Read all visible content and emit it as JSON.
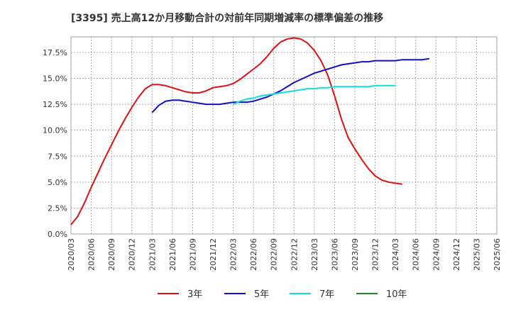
{
  "chart_data": {
    "type": "line",
    "title": "[3395]  売上高12か月移動合計の対前年同期増減率の標準偏差の推移",
    "xlabel": "",
    "ylabel": "",
    "ylim": [
      0,
      0.19
    ],
    "y_ticks": [
      {
        "value": 0.0,
        "label": "0.0%"
      },
      {
        "value": 0.025,
        "label": "2.5%"
      },
      {
        "value": 0.05,
        "label": "5.0%"
      },
      {
        "value": 0.075,
        "label": "7.5%"
      },
      {
        "value": 0.1,
        "label": "10.0%"
      },
      {
        "value": 0.125,
        "label": "12.5%"
      },
      {
        "value": 0.15,
        "label": "15.0%"
      },
      {
        "value": 0.175,
        "label": "17.5%"
      }
    ],
    "x_ticks": [
      "2020/03",
      "2020/06",
      "2020/09",
      "2020/12",
      "2021/03",
      "2021/06",
      "2021/09",
      "2021/12",
      "2022/03",
      "2022/06",
      "2022/09",
      "2022/12",
      "2023/03",
      "2023/06",
      "2023/09",
      "2023/12",
      "2024/03",
      "2024/06",
      "2024/09",
      "2024/12",
      "2025/03",
      "2025/06"
    ],
    "grid": true,
    "legend_position": "bottom",
    "series": [
      {
        "name": "3年",
        "color": "#dd1111",
        "points": [
          [
            "2020/03",
            0.009
          ],
          [
            "2020/04",
            0.017
          ],
          [
            "2020/05",
            0.03
          ],
          [
            "2020/06",
            0.045
          ],
          [
            "2020/07",
            0.059
          ],
          [
            "2020/08",
            0.073
          ],
          [
            "2020/09",
            0.086
          ],
          [
            "2020/10",
            0.099
          ],
          [
            "2020/11",
            0.111
          ],
          [
            "2020/12",
            0.122
          ],
          [
            "2021/01",
            0.132
          ],
          [
            "2021/02",
            0.14
          ],
          [
            "2021/03",
            0.144
          ],
          [
            "2021/04",
            0.144
          ],
          [
            "2021/05",
            0.143
          ],
          [
            "2021/06",
            0.141
          ],
          [
            "2021/07",
            0.139
          ],
          [
            "2021/08",
            0.137
          ],
          [
            "2021/09",
            0.136
          ],
          [
            "2021/10",
            0.136
          ],
          [
            "2021/11",
            0.138
          ],
          [
            "2021/12",
            0.141
          ],
          [
            "2022/01",
            0.142
          ],
          [
            "2022/02",
            0.143
          ],
          [
            "2022/03",
            0.145
          ],
          [
            "2022/04",
            0.149
          ],
          [
            "2022/05",
            0.154
          ],
          [
            "2022/06",
            0.159
          ],
          [
            "2022/07",
            0.164
          ],
          [
            "2022/08",
            0.171
          ],
          [
            "2022/09",
            0.179
          ],
          [
            "2022/10",
            0.185
          ],
          [
            "2022/11",
            0.188
          ],
          [
            "2022/12",
            0.189
          ],
          [
            "2023/01",
            0.188
          ],
          [
            "2023/02",
            0.184
          ],
          [
            "2023/03",
            0.177
          ],
          [
            "2023/04",
            0.167
          ],
          [
            "2023/05",
            0.153
          ],
          [
            "2023/06",
            0.133
          ],
          [
            "2023/07",
            0.111
          ],
          [
            "2023/08",
            0.093
          ],
          [
            "2023/09",
            0.082
          ],
          [
            "2023/10",
            0.072
          ],
          [
            "2023/11",
            0.063
          ],
          [
            "2023/12",
            0.056
          ],
          [
            "2024/01",
            0.052
          ],
          [
            "2024/02",
            0.05
          ],
          [
            "2024/03",
            0.049
          ],
          [
            "2024/04",
            0.048
          ]
        ]
      },
      {
        "name": "5年",
        "color": "#1010cc",
        "points": [
          [
            "2021/03",
            0.117
          ],
          [
            "2021/04",
            0.124
          ],
          [
            "2021/05",
            0.128
          ],
          [
            "2021/06",
            0.129
          ],
          [
            "2021/07",
            0.129
          ],
          [
            "2021/08",
            0.128
          ],
          [
            "2021/09",
            0.127
          ],
          [
            "2021/10",
            0.126
          ],
          [
            "2021/11",
            0.125
          ],
          [
            "2021/12",
            0.125
          ],
          [
            "2022/01",
            0.125
          ],
          [
            "2022/02",
            0.126
          ],
          [
            "2022/03",
            0.127
          ],
          [
            "2022/04",
            0.127
          ],
          [
            "2022/05",
            0.127
          ],
          [
            "2022/06",
            0.128
          ],
          [
            "2022/07",
            0.13
          ],
          [
            "2022/08",
            0.132
          ],
          [
            "2022/09",
            0.135
          ],
          [
            "2022/10",
            0.138
          ],
          [
            "2022/11",
            0.142
          ],
          [
            "2022/12",
            0.146
          ],
          [
            "2023/01",
            0.149
          ],
          [
            "2023/02",
            0.152
          ],
          [
            "2023/03",
            0.155
          ],
          [
            "2023/04",
            0.157
          ],
          [
            "2023/05",
            0.159
          ],
          [
            "2023/06",
            0.161
          ],
          [
            "2023/07",
            0.163
          ],
          [
            "2023/08",
            0.164
          ],
          [
            "2023/09",
            0.165
          ],
          [
            "2023/10",
            0.166
          ],
          [
            "2023/11",
            0.166
          ],
          [
            "2023/12",
            0.167
          ],
          [
            "2024/01",
            0.167
          ],
          [
            "2024/02",
            0.167
          ],
          [
            "2024/03",
            0.167
          ],
          [
            "2024/04",
            0.168
          ],
          [
            "2024/05",
            0.168
          ],
          [
            "2024/06",
            0.168
          ],
          [
            "2024/07",
            0.168
          ],
          [
            "2024/08",
            0.169
          ]
        ]
      },
      {
        "name": "7年",
        "color": "#11dddd",
        "points": [
          [
            "2022/03",
            0.125
          ],
          [
            "2022/04",
            0.128
          ],
          [
            "2022/05",
            0.13
          ],
          [
            "2022/06",
            0.131
          ],
          [
            "2022/07",
            0.133
          ],
          [
            "2022/08",
            0.134
          ],
          [
            "2022/09",
            0.135
          ],
          [
            "2022/10",
            0.136
          ],
          [
            "2022/11",
            0.137
          ],
          [
            "2022/12",
            0.138
          ],
          [
            "2023/01",
            0.139
          ],
          [
            "2023/02",
            0.14
          ],
          [
            "2023/03",
            0.14
          ],
          [
            "2023/04",
            0.141
          ],
          [
            "2023/05",
            0.141
          ],
          [
            "2023/06",
            0.142
          ],
          [
            "2023/07",
            0.142
          ],
          [
            "2023/08",
            0.142
          ],
          [
            "2023/09",
            0.142
          ],
          [
            "2023/10",
            0.142
          ],
          [
            "2023/11",
            0.142
          ],
          [
            "2023/12",
            0.143
          ],
          [
            "2024/01",
            0.143
          ],
          [
            "2024/02",
            0.143
          ],
          [
            "2024/03",
            0.143
          ]
        ]
      },
      {
        "name": "10年",
        "color": "#228822",
        "points": []
      }
    ]
  }
}
